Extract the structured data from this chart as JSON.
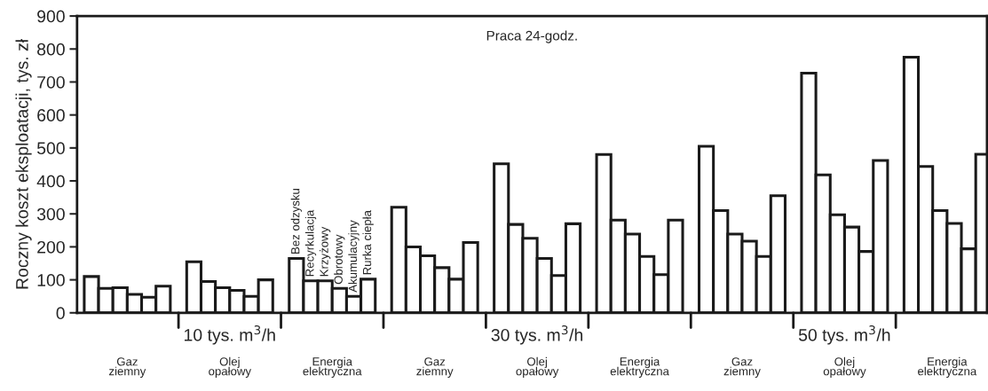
{
  "chart_data": {
    "type": "bar",
    "ylabel": "Roczny koszt eksploatacji, tys. zł",
    "categories": [
      "Gaz\nziemny",
      "Olej\nopałowy",
      "Energia\nelektryczna",
      "Gaz\nziemny",
      "Olej\nopałowy",
      "Energia\nelektryczna",
      "Gaz\nziemny",
      "Olej\nopałowy",
      "Energia\nelektryczna"
    ],
    "series": [
      {
        "name": "Bez odzysku",
        "color": "#ffffff",
        "values": [
          110,
          155,
          165,
          320,
          452,
          480,
          505,
          727,
          775
        ]
      },
      {
        "name": "Recyrkulacja",
        "color": "#ffffff",
        "values": [
          74,
          95,
          97,
          200,
          268,
          281,
          310,
          418,
          444
        ]
      },
      {
        "name": "Krzyżowy",
        "color": "#ffffff",
        "values": [
          76,
          76,
          97,
          173,
          226,
          239,
          239,
          297,
          310
        ]
      },
      {
        "name": "Obrotowy",
        "color": "#ffffff",
        "values": [
          56,
          68,
          74,
          137,
          165,
          171,
          217,
          260,
          271
        ]
      },
      {
        "name": "Akumulacyjny",
        "color": "#ffffff",
        "values": [
          47,
          50,
          50,
          102,
          113,
          116,
          171,
          186,
          194
        ]
      },
      {
        "name": "Rurka ciepła",
        "color": "#ffffff",
        "values": [
          81,
          100,
          102,
          213,
          270,
          281,
          355,
          462,
          481
        ]
      }
    ],
    "ylim": [
      0,
      900
    ],
    "yticks": [
      0,
      100,
      200,
      300,
      400,
      500,
      600,
      700,
      800,
      900
    ],
    "annotations": [
      "Praca 24-godz.",
      "10 tys. m$^{3}$/h",
      "30 tys. m$^{3}$/h",
      "50 tys. m$^{3}$/h"
    ]
  }
}
